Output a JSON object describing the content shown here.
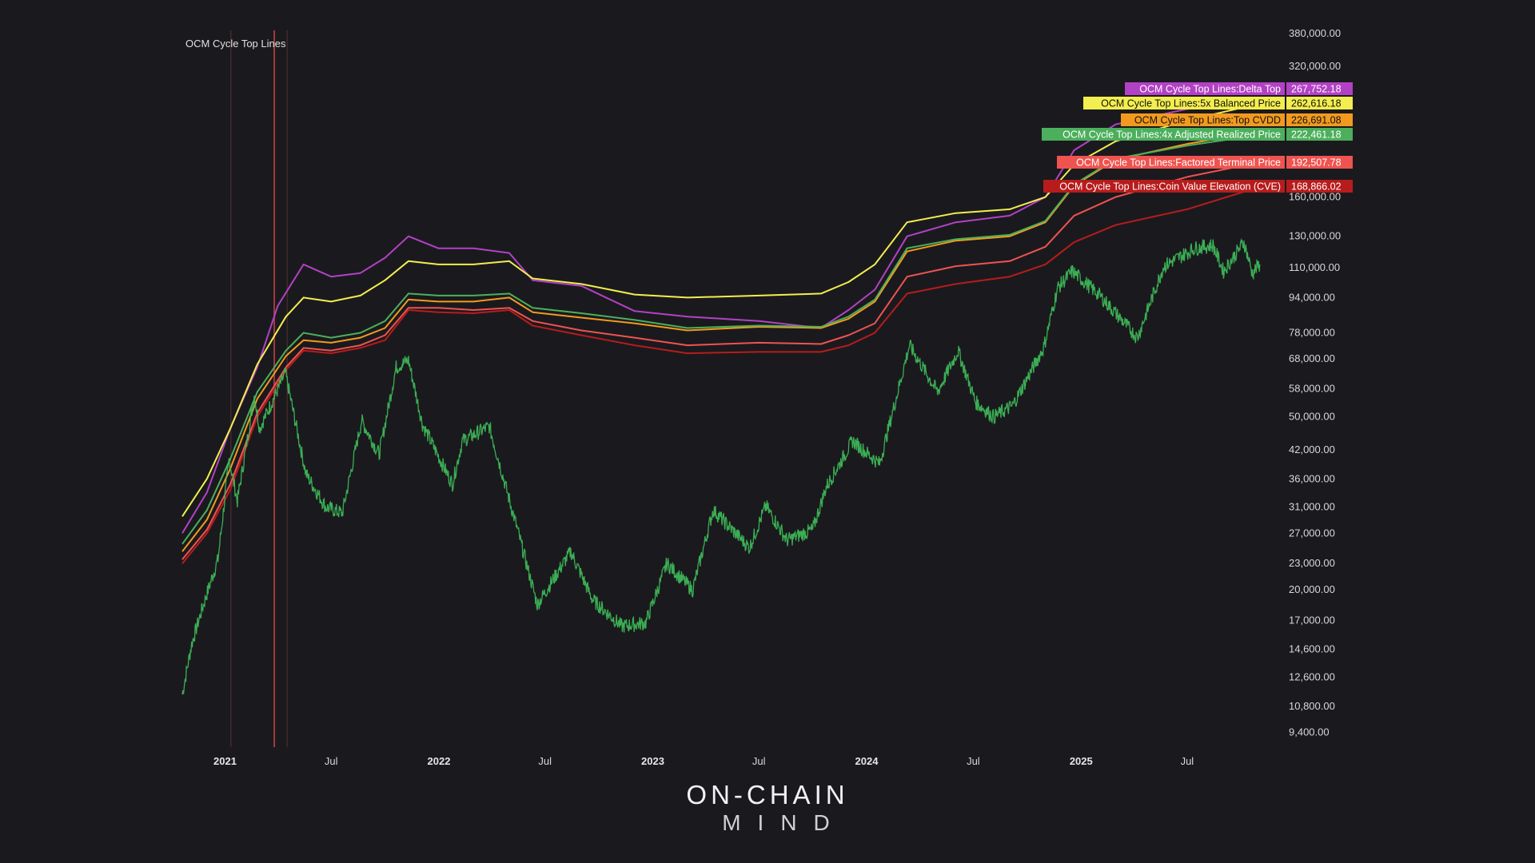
{
  "chart_data": {
    "type": "line",
    "title": "OCM Cycle Top Lines",
    "y_scale": "log",
    "ylim": [
      8700,
      400000
    ],
    "x_range": [
      "2020-10-20",
      "2025-12-05"
    ],
    "grid": false,
    "legend_placement": "right",
    "y_ticks": [
      "380,000.00",
      "320,000.00",
      "160,000.00",
      "130,000.00",
      "110,000.00",
      "94,000.00",
      "78,000.00",
      "68,000.00",
      "58,000.00",
      "50,000.00",
      "42,000.00",
      "36,000.00",
      "31,000.00",
      "27,000.00",
      "23,000.00",
      "20,000.00",
      "17,000.00",
      "14,600.00",
      "12,600.00",
      "10,800.00",
      "9,400.00"
    ],
    "x_ticks": [
      {
        "label": "2021",
        "date": "2021-01-01",
        "year": true
      },
      {
        "label": "Jul",
        "date": "2021-07-01",
        "year": false
      },
      {
        "label": "2022",
        "date": "2022-01-01",
        "year": true
      },
      {
        "label": "Jul",
        "date": "2022-07-01",
        "year": false
      },
      {
        "label": "2023",
        "date": "2023-01-01",
        "year": true
      },
      {
        "label": "Jul",
        "date": "2023-07-01",
        "year": false
      },
      {
        "label": "2024",
        "date": "2024-01-01",
        "year": true
      },
      {
        "label": "Jul",
        "date": "2024-07-01",
        "year": false
      },
      {
        "label": "2025",
        "date": "2025-01-01",
        "year": true
      },
      {
        "label": "Jul",
        "date": "2025-07-01",
        "year": false
      }
    ],
    "markers": [
      {
        "date": "2021-01-11",
        "color": "#5a3030"
      },
      {
        "date": "2021-03-26",
        "color": "#a33a3a"
      },
      {
        "date": "2021-04-17",
        "color": "#5a3030"
      }
    ],
    "price_series": {
      "color": "#3fbf5a",
      "points": [
        [
          "2020-10-20",
          11500
        ],
        [
          "2020-11-05",
          15000
        ],
        [
          "2020-11-25",
          18500
        ],
        [
          "2020-12-20",
          23500
        ],
        [
          "2021-01-08",
          40000
        ],
        [
          "2021-01-22",
          32000
        ],
        [
          "2021-02-20",
          56000
        ],
        [
          "2021-03-01",
          47000
        ],
        [
          "2021-04-14",
          63000
        ],
        [
          "2021-05-19",
          37000
        ],
        [
          "2021-06-22",
          31000
        ],
        [
          "2021-07-20",
          30000
        ],
        [
          "2021-08-22",
          49000
        ],
        [
          "2021-09-21",
          41000
        ],
        [
          "2021-10-20",
          65000
        ],
        [
          "2021-11-10",
          67500
        ],
        [
          "2021-12-04",
          48000
        ],
        [
          "2022-01-24",
          35000
        ],
        [
          "2022-02-10",
          44000
        ],
        [
          "2022-03-28",
          47500
        ],
        [
          "2022-05-12",
          28500
        ],
        [
          "2022-06-18",
          18500
        ],
        [
          "2022-08-14",
          24500
        ],
        [
          "2022-09-20",
          19000
        ],
        [
          "2022-11-09",
          16500
        ],
        [
          "2022-12-20",
          16800
        ],
        [
          "2023-01-25",
          23000
        ],
        [
          "2023-03-10",
          20000
        ],
        [
          "2023-04-14",
          30500
        ],
        [
          "2023-06-15",
          25000
        ],
        [
          "2023-07-13",
          31200
        ],
        [
          "2023-08-18",
          26000
        ],
        [
          "2023-10-01",
          27500
        ],
        [
          "2023-10-24",
          34500
        ],
        [
          "2023-12-08",
          44000
        ],
        [
          "2024-01-23",
          39000
        ],
        [
          "2024-03-14",
          73000
        ],
        [
          "2024-05-01",
          57000
        ],
        [
          "2024-06-05",
          71000
        ],
        [
          "2024-07-05",
          54000
        ],
        [
          "2024-08-05",
          50000
        ],
        [
          "2024-09-06",
          53000
        ],
        [
          "2024-10-29",
          72000
        ],
        [
          "2024-11-22",
          99000
        ],
        [
          "2024-12-17",
          108000
        ],
        [
          "2025-02-02",
          95000
        ],
        [
          "2025-04-07",
          76000
        ],
        [
          "2025-05-22",
          111000
        ],
        [
          "2025-07-14",
          122000
        ],
        [
          "2025-08-14",
          124000
        ],
        [
          "2025-09-01",
          108000
        ],
        [
          "2025-10-06",
          126000
        ],
        [
          "2025-10-20",
          107000
        ],
        [
          "2025-11-02",
          112000
        ]
      ]
    },
    "series": [
      {
        "name": "OCM Cycle Top Lines:Delta Top",
        "color": "#b341c5",
        "value": "267,752.18",
        "points": [
          [
            "2020-10-20",
            27000
          ],
          [
            "2020-12-01",
            33500
          ],
          [
            "2021-01-10",
            47000
          ],
          [
            "2021-02-25",
            65000
          ],
          [
            "2021-04-01",
            90000
          ],
          [
            "2021-05-15",
            112000
          ],
          [
            "2021-07-01",
            105000
          ],
          [
            "2021-08-20",
            107000
          ],
          [
            "2021-10-01",
            116000
          ],
          [
            "2021-11-10",
            130000
          ],
          [
            "2021-12-31",
            122000
          ],
          [
            "2022-03-01",
            122000
          ],
          [
            "2022-05-01",
            119000
          ],
          [
            "2022-06-10",
            103000
          ],
          [
            "2022-09-01",
            100000
          ],
          [
            "2022-12-01",
            87500
          ],
          [
            "2023-03-01",
            85000
          ],
          [
            "2023-07-01",
            83000
          ],
          [
            "2023-10-15",
            80000
          ],
          [
            "2023-12-01",
            88000
          ],
          [
            "2024-01-15",
            98000
          ],
          [
            "2024-03-10",
            130000
          ],
          [
            "2024-06-01",
            140000
          ],
          [
            "2024-09-01",
            145000
          ],
          [
            "2024-11-01",
            160000
          ],
          [
            "2024-12-20",
            205000
          ],
          [
            "2025-03-01",
            235000
          ],
          [
            "2025-07-01",
            255000
          ],
          [
            "2025-11-02",
            267752
          ]
        ]
      },
      {
        "name": "OCM Cycle Top Lines:5x Balanced Price",
        "color": "#f3ee4f",
        "value": "262,616.18",
        "points": [
          [
            "2020-10-20",
            29500
          ],
          [
            "2020-12-01",
            36000
          ],
          [
            "2021-01-10",
            47000
          ],
          [
            "2021-02-25",
            66000
          ],
          [
            "2021-04-15",
            85000
          ],
          [
            "2021-05-15",
            94000
          ],
          [
            "2021-07-01",
            92000
          ],
          [
            "2021-08-20",
            95000
          ],
          [
            "2021-10-01",
            103000
          ],
          [
            "2021-11-10",
            114000
          ],
          [
            "2021-12-31",
            112000
          ],
          [
            "2022-03-01",
            112000
          ],
          [
            "2022-05-01",
            114000
          ],
          [
            "2022-06-10",
            104000
          ],
          [
            "2022-09-01",
            101000
          ],
          [
            "2022-12-01",
            95500
          ],
          [
            "2023-03-01",
            94000
          ],
          [
            "2023-07-01",
            95000
          ],
          [
            "2023-10-15",
            96000
          ],
          [
            "2023-12-01",
            102000
          ],
          [
            "2024-01-15",
            112000
          ],
          [
            "2024-03-10",
            140000
          ],
          [
            "2024-06-01",
            147000
          ],
          [
            "2024-09-01",
            150000
          ],
          [
            "2024-11-01",
            160000
          ],
          [
            "2024-12-20",
            190000
          ],
          [
            "2025-03-01",
            215000
          ],
          [
            "2025-07-01",
            240000
          ],
          [
            "2025-11-02",
            262616
          ]
        ]
      },
      {
        "name": "OCM Cycle Top Lines:Top CVDD",
        "color": "#f29a1f",
        "value": "226,691.08",
        "points": [
          [
            "2020-10-20",
            24500
          ],
          [
            "2020-12-01",
            29000
          ],
          [
            "2021-01-10",
            38000
          ],
          [
            "2021-02-25",
            55000
          ],
          [
            "2021-04-15",
            69000
          ],
          [
            "2021-05-15",
            75000
          ],
          [
            "2021-07-01",
            74000
          ],
          [
            "2021-08-20",
            76000
          ],
          [
            "2021-10-01",
            80000
          ],
          [
            "2021-11-10",
            93000
          ],
          [
            "2021-12-31",
            92000
          ],
          [
            "2022-03-01",
            92000
          ],
          [
            "2022-05-01",
            94000
          ],
          [
            "2022-06-10",
            87000
          ],
          [
            "2022-09-01",
            84500
          ],
          [
            "2022-12-01",
            82000
          ],
          [
            "2023-03-01",
            79000
          ],
          [
            "2023-07-01",
            80500
          ],
          [
            "2023-10-15",
            80000
          ],
          [
            "2023-12-01",
            84000
          ],
          [
            "2024-01-15",
            92000
          ],
          [
            "2024-03-10",
            120000
          ],
          [
            "2024-06-01",
            127000
          ],
          [
            "2024-09-01",
            130000
          ],
          [
            "2024-11-01",
            140000
          ],
          [
            "2024-12-20",
            170000
          ],
          [
            "2025-03-01",
            195000
          ],
          [
            "2025-07-01",
            212000
          ],
          [
            "2025-11-02",
            226691
          ]
        ]
      },
      {
        "name": "OCM Cycle Top Lines:4x Adjusted Realized Price",
        "color": "#4caf5c",
        "value": "222,461.18",
        "points": [
          [
            "2020-10-20",
            25500
          ],
          [
            "2020-12-01",
            30500
          ],
          [
            "2021-01-10",
            40000
          ],
          [
            "2021-02-25",
            57000
          ],
          [
            "2021-04-15",
            71000
          ],
          [
            "2021-05-15",
            78000
          ],
          [
            "2021-07-01",
            76000
          ],
          [
            "2021-08-20",
            78000
          ],
          [
            "2021-10-01",
            83000
          ],
          [
            "2021-11-10",
            96000
          ],
          [
            "2021-12-31",
            95000
          ],
          [
            "2022-03-01",
            95000
          ],
          [
            "2022-05-01",
            96000
          ],
          [
            "2022-06-10",
            89000
          ],
          [
            "2022-09-01",
            86500
          ],
          [
            "2022-12-01",
            83500
          ],
          [
            "2023-03-01",
            80000
          ],
          [
            "2023-07-01",
            81000
          ],
          [
            "2023-10-15",
            80500
          ],
          [
            "2023-12-01",
            85000
          ],
          [
            "2024-01-15",
            93000
          ],
          [
            "2024-03-10",
            122000
          ],
          [
            "2024-06-01",
            128000
          ],
          [
            "2024-09-01",
            131000
          ],
          [
            "2024-11-01",
            141000
          ],
          [
            "2024-12-20",
            171000
          ],
          [
            "2025-03-01",
            196000
          ],
          [
            "2025-07-01",
            210000
          ],
          [
            "2025-11-02",
            222461
          ]
        ]
      },
      {
        "name": "OCM Cycle Top Lines:Factored Terminal Price",
        "color": "#ef5350",
        "value": "192,507.78",
        "points": [
          [
            "2020-10-20",
            23500
          ],
          [
            "2020-12-01",
            27500
          ],
          [
            "2021-01-10",
            35000
          ],
          [
            "2021-02-25",
            51000
          ],
          [
            "2021-04-15",
            65000
          ],
          [
            "2021-05-15",
            72000
          ],
          [
            "2021-07-01",
            71000
          ],
          [
            "2021-08-20",
            73000
          ],
          [
            "2021-10-01",
            77000
          ],
          [
            "2021-11-10",
            89000
          ],
          [
            "2021-12-31",
            89000
          ],
          [
            "2022-03-01",
            88000
          ],
          [
            "2022-05-01",
            89000
          ],
          [
            "2022-06-10",
            83000
          ],
          [
            "2022-09-01",
            79000
          ],
          [
            "2022-12-01",
            76000
          ],
          [
            "2023-03-01",
            73000
          ],
          [
            "2023-07-01",
            74000
          ],
          [
            "2023-10-15",
            73500
          ],
          [
            "2023-12-01",
            77000
          ],
          [
            "2024-01-15",
            82000
          ],
          [
            "2024-03-10",
            105000
          ],
          [
            "2024-06-01",
            111000
          ],
          [
            "2024-09-01",
            114000
          ],
          [
            "2024-11-01",
            123000
          ],
          [
            "2024-12-20",
            145000
          ],
          [
            "2025-03-01",
            160000
          ],
          [
            "2025-07-01",
            178000
          ],
          [
            "2025-11-02",
            192507
          ]
        ]
      },
      {
        "name": "OCM Cycle Top Lines:Coin Value Elevation (CVE)",
        "color": "#b71c1c",
        "value": "168,866.02",
        "points": [
          [
            "2020-10-20",
            23000
          ],
          [
            "2020-12-01",
            27000
          ],
          [
            "2021-01-10",
            34000
          ],
          [
            "2021-02-25",
            50000
          ],
          [
            "2021-04-15",
            64000
          ],
          [
            "2021-05-15",
            71000
          ],
          [
            "2021-07-01",
            70000
          ],
          [
            "2021-08-20",
            72000
          ],
          [
            "2021-10-01",
            75000
          ],
          [
            "2021-11-10",
            88000
          ],
          [
            "2021-12-31",
            87000
          ],
          [
            "2022-03-01",
            86500
          ],
          [
            "2022-05-01",
            88000
          ],
          [
            "2022-06-10",
            81000
          ],
          [
            "2022-09-01",
            77000
          ],
          [
            "2022-12-01",
            73000
          ],
          [
            "2023-03-01",
            70000
          ],
          [
            "2023-07-01",
            70500
          ],
          [
            "2023-10-15",
            70500
          ],
          [
            "2023-12-01",
            73000
          ],
          [
            "2024-01-15",
            78000
          ],
          [
            "2024-03-10",
            96000
          ],
          [
            "2024-06-01",
            101000
          ],
          [
            "2024-09-01",
            105000
          ],
          [
            "2024-11-01",
            112000
          ],
          [
            "2024-12-20",
            126000
          ],
          [
            "2025-03-01",
            138000
          ],
          [
            "2025-07-01",
            150000
          ],
          [
            "2025-11-02",
            168866
          ]
        ]
      }
    ]
  },
  "brand": {
    "line1": "ON-CHAIN",
    "line2": "MIND"
  }
}
